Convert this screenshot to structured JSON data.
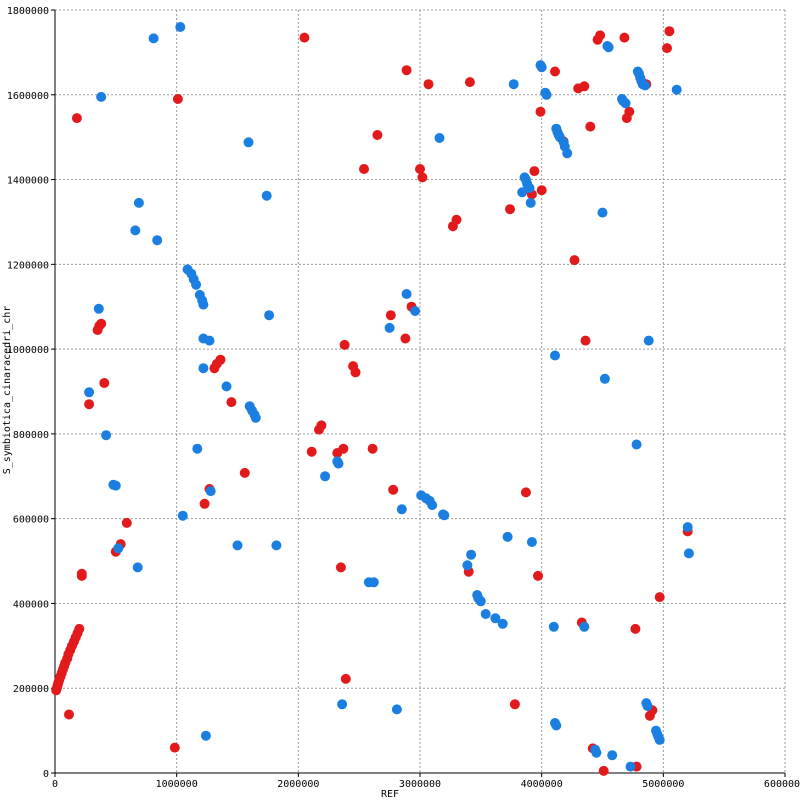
{
  "chart_data": {
    "type": "scatter",
    "title": "",
    "xlabel": "REF",
    "ylabel": "S_symbiotica_cinaracedri_chr",
    "xlim": [
      0,
      6000000
    ],
    "ylim": [
      0,
      1800000
    ],
    "xticks": [
      "0",
      "1000000",
      "2000000",
      "3000000",
      "4000000",
      "5000000",
      "6000000"
    ],
    "yticks": [
      "0",
      "200000",
      "400000",
      "600000",
      "800000",
      "1000000",
      "1200000",
      "1400000",
      "1600000",
      "1800000"
    ],
    "grid": true,
    "legend": "none",
    "series": [
      {
        "color": "#e31a1c",
        "points": [
          [
            10000,
            195000
          ],
          [
            15000,
            200000
          ],
          [
            20000,
            205000
          ],
          [
            25000,
            210000
          ],
          [
            30000,
            215000
          ],
          [
            35000,
            220000
          ],
          [
            45000,
            228000
          ],
          [
            55000,
            236000
          ],
          [
            65000,
            244000
          ],
          [
            75000,
            252000
          ],
          [
            85000,
            260000
          ],
          [
            100000,
            270000
          ],
          [
            110000,
            280000
          ],
          [
            125000,
            290000
          ],
          [
            140000,
            300000
          ],
          [
            155000,
            310000
          ],
          [
            170000,
            320000
          ],
          [
            185000,
            330000
          ],
          [
            200000,
            340000
          ],
          [
            115000,
            138000
          ],
          [
            220000,
            465000
          ],
          [
            220000,
            470000
          ],
          [
            500000,
            522000
          ],
          [
            540000,
            540000
          ],
          [
            590000,
            590000
          ],
          [
            350000,
            1045000
          ],
          [
            365000,
            1055000
          ],
          [
            380000,
            1060000
          ],
          [
            405000,
            920000
          ],
          [
            280000,
            870000
          ],
          [
            180000,
            1545000
          ],
          [
            985000,
            60000
          ],
          [
            1010000,
            1590000
          ],
          [
            1230000,
            635000
          ],
          [
            1270000,
            670000
          ],
          [
            1310000,
            955000
          ],
          [
            1330000,
            965000
          ],
          [
            1360000,
            975000
          ],
          [
            1450000,
            875000
          ],
          [
            1560000,
            708000
          ],
          [
            2050000,
            1735000
          ],
          [
            2110000,
            758000
          ],
          [
            2170000,
            810000
          ],
          [
            2190000,
            820000
          ],
          [
            2320000,
            755000
          ],
          [
            2350000,
            485000
          ],
          [
            2370000,
            765000
          ],
          [
            2380000,
            1010000
          ],
          [
            2390000,
            222000
          ],
          [
            2450000,
            960000
          ],
          [
            2470000,
            945000
          ],
          [
            2540000,
            1425000
          ],
          [
            2610000,
            765000
          ],
          [
            2650000,
            1505000
          ],
          [
            2760000,
            1080000
          ],
          [
            2780000,
            668000
          ],
          [
            2880000,
            1025000
          ],
          [
            2890000,
            1658000
          ],
          [
            2930000,
            1100000
          ],
          [
            3000000,
            1425000
          ],
          [
            3020000,
            1405000
          ],
          [
            3070000,
            1625000
          ],
          [
            3270000,
            1290000
          ],
          [
            3300000,
            1305000
          ],
          [
            3400000,
            475000
          ],
          [
            3410000,
            1630000
          ],
          [
            3740000,
            1330000
          ],
          [
            3780000,
            162000
          ],
          [
            3870000,
            662000
          ],
          [
            3920000,
            1365000
          ],
          [
            3940000,
            1420000
          ],
          [
            3970000,
            465000
          ],
          [
            3990000,
            1560000
          ],
          [
            4000000,
            1375000
          ],
          [
            4110000,
            1655000
          ],
          [
            4180000,
            1490000
          ],
          [
            4270000,
            1210000
          ],
          [
            4300000,
            1615000
          ],
          [
            4330000,
            355000
          ],
          [
            4350000,
            1620000
          ],
          [
            4360000,
            1020000
          ],
          [
            4400000,
            1525000
          ],
          [
            4420000,
            58000
          ],
          [
            4460000,
            1730000
          ],
          [
            4480000,
            1740000
          ],
          [
            4510000,
            5000
          ],
          [
            4680000,
            1735000
          ],
          [
            4700000,
            1545000
          ],
          [
            4720000,
            1560000
          ],
          [
            4770000,
            340000
          ],
          [
            4780000,
            15000
          ],
          [
            4860000,
            1625000
          ],
          [
            4890000,
            135000
          ],
          [
            4910000,
            148000
          ],
          [
            4970000,
            415000
          ],
          [
            5030000,
            1710000
          ],
          [
            5050000,
            1750000
          ],
          [
            5200000,
            570000
          ]
        ]
      },
      {
        "color": "#1a7fe0",
        "points": [
          [
            280000,
            898000
          ],
          [
            360000,
            1095000
          ],
          [
            380000,
            1595000
          ],
          [
            420000,
            797000
          ],
          [
            480000,
            680000
          ],
          [
            500000,
            678000
          ],
          [
            520000,
            530000
          ],
          [
            680000,
            485000
          ],
          [
            660000,
            1280000
          ],
          [
            690000,
            1345000
          ],
          [
            810000,
            1733000
          ],
          [
            840000,
            1257000
          ],
          [
            1030000,
            1760000
          ],
          [
            1050000,
            607000
          ],
          [
            1090000,
            1188000
          ],
          [
            1120000,
            1178000
          ],
          [
            1140000,
            1165000
          ],
          [
            1160000,
            1152000
          ],
          [
            1170000,
            765000
          ],
          [
            1190000,
            1128000
          ],
          [
            1210000,
            1115000
          ],
          [
            1220000,
            1105000
          ],
          [
            1220000,
            955000
          ],
          [
            1220000,
            1025000
          ],
          [
            1240000,
            88000
          ],
          [
            1270000,
            1020000
          ],
          [
            1280000,
            665000
          ],
          [
            1410000,
            912000
          ],
          [
            1500000,
            537000
          ],
          [
            1590000,
            1488000
          ],
          [
            1600000,
            865000
          ],
          [
            1620000,
            855000
          ],
          [
            1640000,
            845000
          ],
          [
            1650000,
            838000
          ],
          [
            1740000,
            1362000
          ],
          [
            1760000,
            1080000
          ],
          [
            1820000,
            537000
          ],
          [
            2220000,
            700000
          ],
          [
            2320000,
            735000
          ],
          [
            2330000,
            730000
          ],
          [
            2360000,
            162000
          ],
          [
            2580000,
            450000
          ],
          [
            2620000,
            450000
          ],
          [
            2750000,
            1050000
          ],
          [
            2810000,
            150000
          ],
          [
            2850000,
            622000
          ],
          [
            2890000,
            1130000
          ],
          [
            2960000,
            1090000
          ],
          [
            3010000,
            655000
          ],
          [
            3050000,
            648000
          ],
          [
            3080000,
            642000
          ],
          [
            3100000,
            632000
          ],
          [
            3160000,
            1498000
          ],
          [
            3190000,
            610000
          ],
          [
            3200000,
            608000
          ],
          [
            3390000,
            490000
          ],
          [
            3420000,
            515000
          ],
          [
            3470000,
            420000
          ],
          [
            3480000,
            412000
          ],
          [
            3500000,
            405000
          ],
          [
            3540000,
            375000
          ],
          [
            3620000,
            365000
          ],
          [
            3680000,
            352000
          ],
          [
            3720000,
            557000
          ],
          [
            3770000,
            1625000
          ],
          [
            3840000,
            1370000
          ],
          [
            3860000,
            1405000
          ],
          [
            3870000,
            1400000
          ],
          [
            3880000,
            1390000
          ],
          [
            3900000,
            1380000
          ],
          [
            3910000,
            1345000
          ],
          [
            3920000,
            545000
          ],
          [
            3990000,
            1670000
          ],
          [
            4000000,
            1665000
          ],
          [
            4030000,
            1605000
          ],
          [
            4040000,
            1600000
          ],
          [
            4100000,
            345000
          ],
          [
            4110000,
            985000
          ],
          [
            4110000,
            118000
          ],
          [
            4120000,
            112000
          ],
          [
            4120000,
            1520000
          ],
          [
            4130000,
            1512000
          ],
          [
            4140000,
            1505000
          ],
          [
            4150000,
            1500000
          ],
          [
            4180000,
            1488000
          ],
          [
            4190000,
            1478000
          ],
          [
            4210000,
            1462000
          ],
          [
            4350000,
            345000
          ],
          [
            4440000,
            55000
          ],
          [
            4450000,
            48000
          ],
          [
            4500000,
            1322000
          ],
          [
            4520000,
            930000
          ],
          [
            4540000,
            1715000
          ],
          [
            4550000,
            1712000
          ],
          [
            4580000,
            42000
          ],
          [
            4660000,
            1590000
          ],
          [
            4670000,
            1585000
          ],
          [
            4690000,
            1580000
          ],
          [
            4730000,
            15000
          ],
          [
            4780000,
            775000
          ],
          [
            4790000,
            1655000
          ],
          [
            4800000,
            1650000
          ],
          [
            4810000,
            1640000
          ],
          [
            4820000,
            1632000
          ],
          [
            4830000,
            1625000
          ],
          [
            4850000,
            1622000
          ],
          [
            4860000,
            165000
          ],
          [
            4870000,
            158000
          ],
          [
            4880000,
            1020000
          ],
          [
            4940000,
            100000
          ],
          [
            4950000,
            92000
          ],
          [
            4960000,
            85000
          ],
          [
            4970000,
            78000
          ],
          [
            5110000,
            1612000
          ],
          [
            5200000,
            580000
          ],
          [
            5210000,
            518000
          ]
        ]
      }
    ]
  }
}
